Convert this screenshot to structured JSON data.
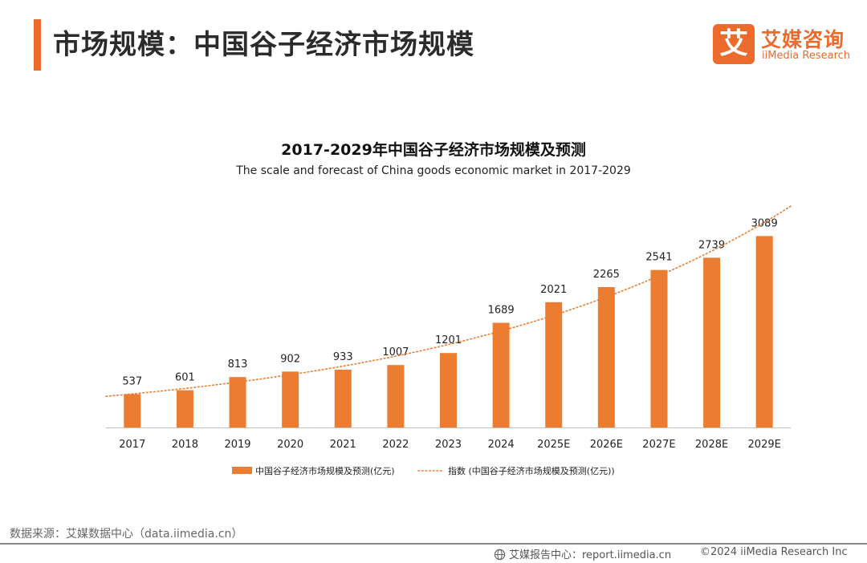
{
  "header": {
    "title": "市场规模：中国谷子经济市场规模",
    "accent_color": "#ec6a2c"
  },
  "logo": {
    "mark": "艾",
    "cn": "艾媒咨询",
    "en": "iiMedia Research"
  },
  "chart_data": {
    "type": "bar",
    "title": "2017-2029年中国谷子经济市场规模及预测",
    "subtitle": "The scale and forecast of China goods economic market in 2017-2029",
    "categories": [
      "2017",
      "2018",
      "2019",
      "2020",
      "2021",
      "2022",
      "2023",
      "2024",
      "2025E",
      "2026E",
      "2027E",
      "2028E",
      "2029E"
    ],
    "series": [
      {
        "name": "中国谷子经济市场规模及预测(亿元)",
        "values": [
          537,
          601,
          813,
          902,
          933,
          1007,
          1201,
          1689,
          2021,
          2265,
          2541,
          2739,
          3089
        ],
        "color": "#ec7c30",
        "style": "bar"
      }
    ],
    "trendline": {
      "name": "指数 (中国谷子经济市场规模及预测(亿元))",
      "type": "exponential",
      "style": "dotted",
      "color": "#ec7c30"
    },
    "value_labels": [
      "537",
      "601",
      "813",
      "902",
      "933",
      "1007",
      "1201",
      "1689",
      "2021",
      "2265",
      "2541",
      "2739",
      "3089"
    ],
    "ylim": [
      0,
      3300
    ],
    "y_axis_visible": false,
    "grid": false,
    "legend_position": "bottom",
    "xlabel": "",
    "ylabel": ""
  },
  "footer": {
    "source": "数据来源：艾媒数据中心（data.iimedia.cn）",
    "report": "艾媒报告中心：report.iimedia.cn",
    "copyright": "©2024  iiMedia Research Inc",
    "icon": "globe-icon"
  }
}
